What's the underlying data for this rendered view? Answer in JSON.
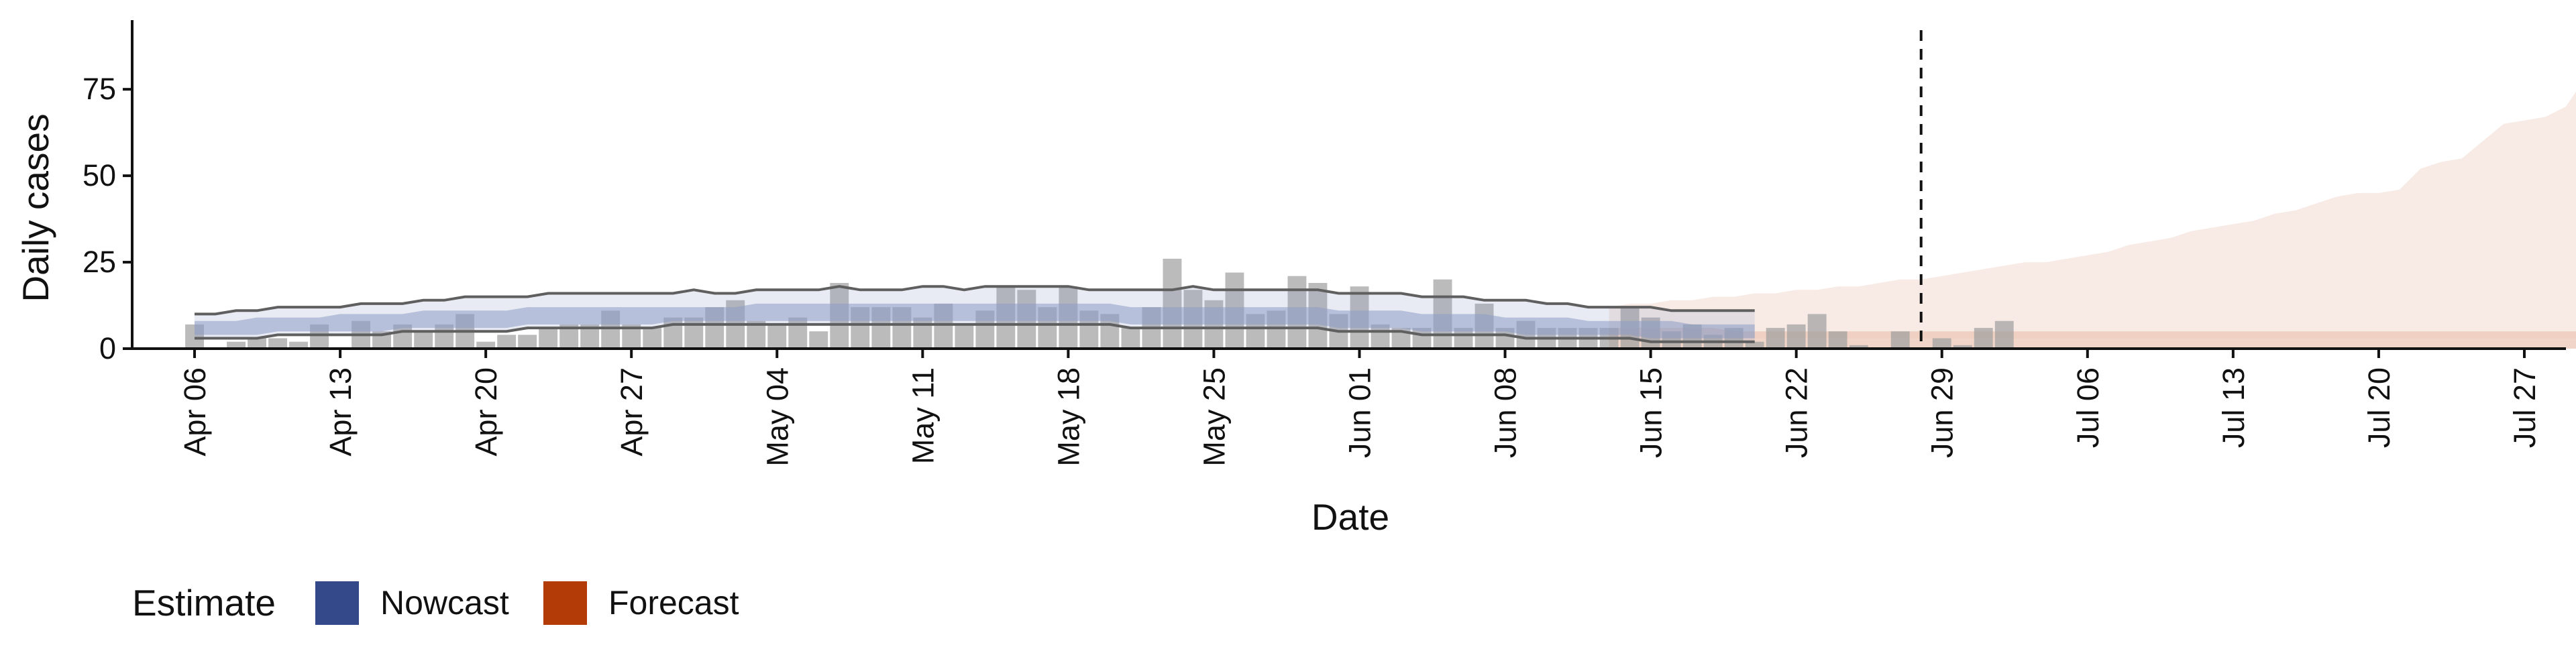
{
  "chart_data": {
    "type": "bar",
    "title": "",
    "xlabel": "Date",
    "ylabel": "Daily cases",
    "ylim": [
      0,
      95
    ],
    "xlim": [
      "2020-04-03",
      "2020-07-29"
    ],
    "grid": false,
    "x_ticks": [
      "Apr 06",
      "Apr 13",
      "Apr 20",
      "Apr 27",
      "May 04",
      "May 11",
      "May 18",
      "May 25",
      "Jun 01",
      "Jun 08",
      "Jun 15",
      "Jun 22",
      "Jun 29",
      "Jul 06",
      "Jul 13",
      "Jul 20",
      "Jul 27"
    ],
    "x_tick_dates": [
      "2020-04-06",
      "2020-04-13",
      "2020-04-20",
      "2020-04-27",
      "2020-05-04",
      "2020-05-11",
      "2020-05-18",
      "2020-05-25",
      "2020-06-01",
      "2020-06-08",
      "2020-06-15",
      "2020-06-22",
      "2020-06-29",
      "2020-07-06",
      "2020-07-13",
      "2020-07-20",
      "2020-07-27"
    ],
    "y_ticks": [
      0,
      25,
      50,
      75
    ],
    "reference_line": {
      "date": "2020-06-28",
      "style": "dashed"
    },
    "legend": {
      "title": "Estimate",
      "position": "bottom-left",
      "entries": [
        {
          "label": "Nowcast",
          "color": "#33498a"
        },
        {
          "label": "Forecast",
          "color": "#b33b08"
        }
      ]
    },
    "colors": {
      "bars": "#9e9e9e",
      "nowcast_band": "#8d9dc5",
      "forecast_band": "#ecc7b6",
      "ribbon_lines": "#5f5f5f"
    },
    "cases": {
      "start_date": "2020-04-06",
      "values": [
        7,
        0,
        2,
        3,
        3,
        2,
        7,
        0,
        8,
        5,
        7,
        5,
        7,
        10,
        2,
        4,
        4,
        6,
        7,
        7,
        11,
        7,
        6,
        9,
        9,
        12,
        14,
        8,
        7,
        9,
        5,
        19,
        12,
        12,
        12,
        9,
        13,
        7,
        11,
        18,
        17,
        12,
        18,
        11,
        10,
        6,
        12,
        26,
        17,
        14,
        22,
        10,
        11,
        21,
        19,
        10,
        18,
        7,
        6,
        6,
        20,
        6,
        13,
        6,
        8,
        6,
        6,
        6,
        6,
        12,
        9,
        5,
        7,
        4,
        6,
        2,
        6,
        7,
        10,
        5,
        1,
        0,
        5,
        0,
        3,
        1,
        6,
        8
      ]
    },
    "nowcast_ribbon": {
      "start_date": "2020-04-06",
      "upper": [
        10,
        10,
        11,
        11,
        12,
        12,
        12,
        12,
        13,
        13,
        13,
        14,
        14,
        15,
        15,
        15,
        15,
        16,
        16,
        16,
        16,
        16,
        16,
        16,
        17,
        16,
        16,
        17,
        17,
        17,
        17,
        18,
        17,
        17,
        17,
        18,
        18,
        17,
        18,
        18,
        18,
        18,
        18,
        17,
        17,
        17,
        17,
        17,
        18,
        17,
        17,
        17,
        17,
        17,
        17,
        16,
        16,
        16,
        16,
        15,
        15,
        15,
        14,
        14,
        14,
        13,
        13,
        12,
        12,
        12,
        12,
        11,
        11,
        11,
        11,
        11
      ],
      "lower": [
        3,
        3,
        3,
        3,
        4,
        4,
        4,
        4,
        4,
        4,
        5,
        5,
        5,
        5,
        5,
        5,
        6,
        6,
        6,
        6,
        6,
        6,
        6,
        7,
        7,
        7,
        7,
        7,
        7,
        7,
        7,
        7,
        7,
        7,
        7,
        7,
        7,
        7,
        7,
        7,
        7,
        7,
        7,
        7,
        7,
        6,
        6,
        6,
        6,
        6,
        6,
        6,
        6,
        6,
        6,
        5,
        5,
        5,
        5,
        4,
        4,
        4,
        4,
        4,
        3,
        3,
        3,
        3,
        3,
        3,
        2,
        2,
        2,
        2,
        2,
        2
      ],
      "band_upper": [
        8,
        8,
        8,
        9,
        9,
        9,
        9,
        10,
        10,
        10,
        10,
        11,
        11,
        11,
        11,
        11,
        12,
        12,
        12,
        12,
        12,
        12,
        12,
        12,
        12,
        12,
        12,
        13,
        13,
        13,
        13,
        13,
        13,
        13,
        13,
        13,
        13,
        13,
        13,
        13,
        13,
        13,
        13,
        13,
        13,
        12,
        12,
        12,
        12,
        12,
        12,
        12,
        12,
        12,
        12,
        11,
        11,
        11,
        11,
        10,
        10,
        10,
        10,
        9,
        9,
        9,
        9,
        8,
        8,
        8,
        8,
        8,
        7,
        7,
        7,
        7
      ],
      "band_lower": [
        4,
        4,
        4,
        4,
        5,
        5,
        5,
        5,
        5,
        5,
        6,
        6,
        6,
        6,
        6,
        6,
        7,
        7,
        7,
        7,
        7,
        7,
        7,
        8,
        8,
        8,
        8,
        8,
        8,
        8,
        8,
        8,
        8,
        8,
        8,
        8,
        8,
        8,
        8,
        8,
        8,
        8,
        8,
        8,
        8,
        7,
        7,
        7,
        7,
        7,
        7,
        7,
        7,
        7,
        7,
        6,
        6,
        6,
        6,
        5,
        5,
        5,
        5,
        5,
        4,
        4,
        4,
        4,
        4,
        4,
        3,
        3,
        3,
        3,
        3,
        3
      ]
    },
    "forecast_ribbon": {
      "start_date": "2020-06-13",
      "upper": [
        12,
        13,
        13,
        14,
        14,
        15,
        15,
        16,
        16,
        17,
        17,
        18,
        18,
        19,
        20,
        20,
        21,
        22,
        23,
        24,
        25,
        25,
        26,
        27,
        28,
        30,
        31,
        32,
        34,
        35,
        36,
        37,
        39,
        40,
        42,
        44,
        45,
        45,
        46,
        52,
        54,
        55,
        60,
        65,
        66,
        67,
        70,
        79,
        80,
        88,
        86,
        89
      ],
      "lower": [
        3,
        3,
        3,
        3,
        3,
        3,
        3,
        3,
        3,
        3,
        3,
        3,
        3,
        3,
        3,
        3,
        3,
        3,
        3,
        3,
        3,
        3,
        3,
        3,
        3,
        3,
        3,
        3,
        3,
        3,
        3,
        3,
        3,
        3,
        3,
        3,
        3,
        3,
        3,
        3,
        3,
        3,
        3,
        3,
        3,
        3,
        3,
        3,
        3,
        3,
        3,
        3
      ],
      "band_upper": [
        6,
        6,
        6,
        6,
        6,
        6,
        5,
        5,
        5,
        5,
        5,
        5,
        5,
        5,
        5,
        5,
        5,
        5,
        5,
        5,
        5,
        5,
        5,
        5,
        5,
        5,
        5,
        5,
        5,
        5,
        5,
        5,
        5,
        5,
        5,
        5,
        5,
        5,
        5,
        5,
        5,
        5,
        5,
        5,
        5,
        5,
        5,
        5,
        5,
        5,
        5,
        5
      ]
    }
  }
}
